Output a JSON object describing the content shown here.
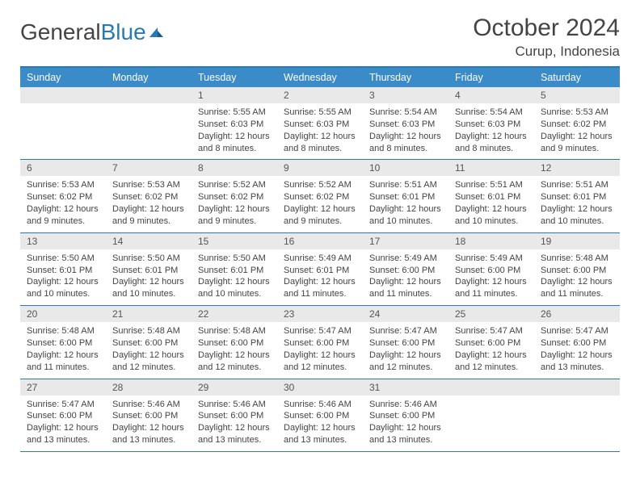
{
  "brand": {
    "part1": "General",
    "part2": "Blue"
  },
  "title": "October 2024",
  "location": "Curup, Indonesia",
  "weekdays": [
    "Sunday",
    "Monday",
    "Tuesday",
    "Wednesday",
    "Thursday",
    "Friday",
    "Saturday"
  ],
  "colors": {
    "accent": "#2a7ab0",
    "header_bg": "#3b8bc8",
    "daynum_bg": "#e9e9e9",
    "text": "#444",
    "logo_gray": "#6b6b6b"
  },
  "weeks": [
    [
      {
        "num": "",
        "lines": []
      },
      {
        "num": "",
        "lines": []
      },
      {
        "num": "1",
        "lines": [
          "Sunrise: 5:55 AM",
          "Sunset: 6:03 PM",
          "Daylight: 12 hours",
          "and 8 minutes."
        ]
      },
      {
        "num": "2",
        "lines": [
          "Sunrise: 5:55 AM",
          "Sunset: 6:03 PM",
          "Daylight: 12 hours",
          "and 8 minutes."
        ]
      },
      {
        "num": "3",
        "lines": [
          "Sunrise: 5:54 AM",
          "Sunset: 6:03 PM",
          "Daylight: 12 hours",
          "and 8 minutes."
        ]
      },
      {
        "num": "4",
        "lines": [
          "Sunrise: 5:54 AM",
          "Sunset: 6:03 PM",
          "Daylight: 12 hours",
          "and 8 minutes."
        ]
      },
      {
        "num": "5",
        "lines": [
          "Sunrise: 5:53 AM",
          "Sunset: 6:02 PM",
          "Daylight: 12 hours",
          "and 9 minutes."
        ]
      }
    ],
    [
      {
        "num": "6",
        "lines": [
          "Sunrise: 5:53 AM",
          "Sunset: 6:02 PM",
          "Daylight: 12 hours",
          "and 9 minutes."
        ]
      },
      {
        "num": "7",
        "lines": [
          "Sunrise: 5:53 AM",
          "Sunset: 6:02 PM",
          "Daylight: 12 hours",
          "and 9 minutes."
        ]
      },
      {
        "num": "8",
        "lines": [
          "Sunrise: 5:52 AM",
          "Sunset: 6:02 PM",
          "Daylight: 12 hours",
          "and 9 minutes."
        ]
      },
      {
        "num": "9",
        "lines": [
          "Sunrise: 5:52 AM",
          "Sunset: 6:02 PM",
          "Daylight: 12 hours",
          "and 9 minutes."
        ]
      },
      {
        "num": "10",
        "lines": [
          "Sunrise: 5:51 AM",
          "Sunset: 6:01 PM",
          "Daylight: 12 hours",
          "and 10 minutes."
        ]
      },
      {
        "num": "11",
        "lines": [
          "Sunrise: 5:51 AM",
          "Sunset: 6:01 PM",
          "Daylight: 12 hours",
          "and 10 minutes."
        ]
      },
      {
        "num": "12",
        "lines": [
          "Sunrise: 5:51 AM",
          "Sunset: 6:01 PM",
          "Daylight: 12 hours",
          "and 10 minutes."
        ]
      }
    ],
    [
      {
        "num": "13",
        "lines": [
          "Sunrise: 5:50 AM",
          "Sunset: 6:01 PM",
          "Daylight: 12 hours",
          "and 10 minutes."
        ]
      },
      {
        "num": "14",
        "lines": [
          "Sunrise: 5:50 AM",
          "Sunset: 6:01 PM",
          "Daylight: 12 hours",
          "and 10 minutes."
        ]
      },
      {
        "num": "15",
        "lines": [
          "Sunrise: 5:50 AM",
          "Sunset: 6:01 PM",
          "Daylight: 12 hours",
          "and 10 minutes."
        ]
      },
      {
        "num": "16",
        "lines": [
          "Sunrise: 5:49 AM",
          "Sunset: 6:01 PM",
          "Daylight: 12 hours",
          "and 11 minutes."
        ]
      },
      {
        "num": "17",
        "lines": [
          "Sunrise: 5:49 AM",
          "Sunset: 6:00 PM",
          "Daylight: 12 hours",
          "and 11 minutes."
        ]
      },
      {
        "num": "18",
        "lines": [
          "Sunrise: 5:49 AM",
          "Sunset: 6:00 PM",
          "Daylight: 12 hours",
          "and 11 minutes."
        ]
      },
      {
        "num": "19",
        "lines": [
          "Sunrise: 5:48 AM",
          "Sunset: 6:00 PM",
          "Daylight: 12 hours",
          "and 11 minutes."
        ]
      }
    ],
    [
      {
        "num": "20",
        "lines": [
          "Sunrise: 5:48 AM",
          "Sunset: 6:00 PM",
          "Daylight: 12 hours",
          "and 11 minutes."
        ]
      },
      {
        "num": "21",
        "lines": [
          "Sunrise: 5:48 AM",
          "Sunset: 6:00 PM",
          "Daylight: 12 hours",
          "and 12 minutes."
        ]
      },
      {
        "num": "22",
        "lines": [
          "Sunrise: 5:48 AM",
          "Sunset: 6:00 PM",
          "Daylight: 12 hours",
          "and 12 minutes."
        ]
      },
      {
        "num": "23",
        "lines": [
          "Sunrise: 5:47 AM",
          "Sunset: 6:00 PM",
          "Daylight: 12 hours",
          "and 12 minutes."
        ]
      },
      {
        "num": "24",
        "lines": [
          "Sunrise: 5:47 AM",
          "Sunset: 6:00 PM",
          "Daylight: 12 hours",
          "and 12 minutes."
        ]
      },
      {
        "num": "25",
        "lines": [
          "Sunrise: 5:47 AM",
          "Sunset: 6:00 PM",
          "Daylight: 12 hours",
          "and 12 minutes."
        ]
      },
      {
        "num": "26",
        "lines": [
          "Sunrise: 5:47 AM",
          "Sunset: 6:00 PM",
          "Daylight: 12 hours",
          "and 13 minutes."
        ]
      }
    ],
    [
      {
        "num": "27",
        "lines": [
          "Sunrise: 5:47 AM",
          "Sunset: 6:00 PM",
          "Daylight: 12 hours",
          "and 13 minutes."
        ]
      },
      {
        "num": "28",
        "lines": [
          "Sunrise: 5:46 AM",
          "Sunset: 6:00 PM",
          "Daylight: 12 hours",
          "and 13 minutes."
        ]
      },
      {
        "num": "29",
        "lines": [
          "Sunrise: 5:46 AM",
          "Sunset: 6:00 PM",
          "Daylight: 12 hours",
          "and 13 minutes."
        ]
      },
      {
        "num": "30",
        "lines": [
          "Sunrise: 5:46 AM",
          "Sunset: 6:00 PM",
          "Daylight: 12 hours",
          "and 13 minutes."
        ]
      },
      {
        "num": "31",
        "lines": [
          "Sunrise: 5:46 AM",
          "Sunset: 6:00 PM",
          "Daylight: 12 hours",
          "and 13 minutes."
        ]
      },
      {
        "num": "",
        "lines": []
      },
      {
        "num": "",
        "lines": []
      }
    ]
  ]
}
